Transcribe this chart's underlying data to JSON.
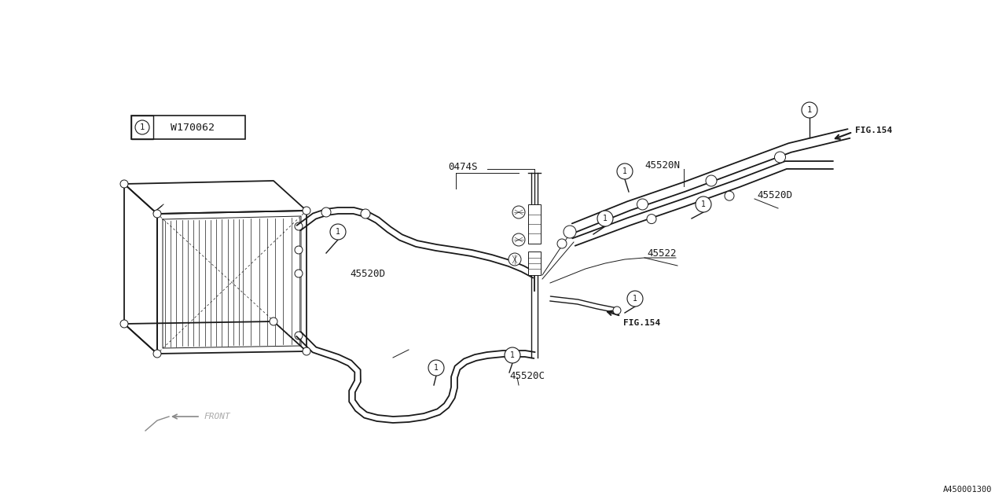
{
  "bg_color": "#ffffff",
  "lc": "#1a1a1a",
  "fig_size": [
    12.8,
    6.4
  ],
  "dpi": 100,
  "bottom_right_label": "A450001300",
  "legend_label": "W170062",
  "legend_num": "1",
  "front_label": "FRONT"
}
